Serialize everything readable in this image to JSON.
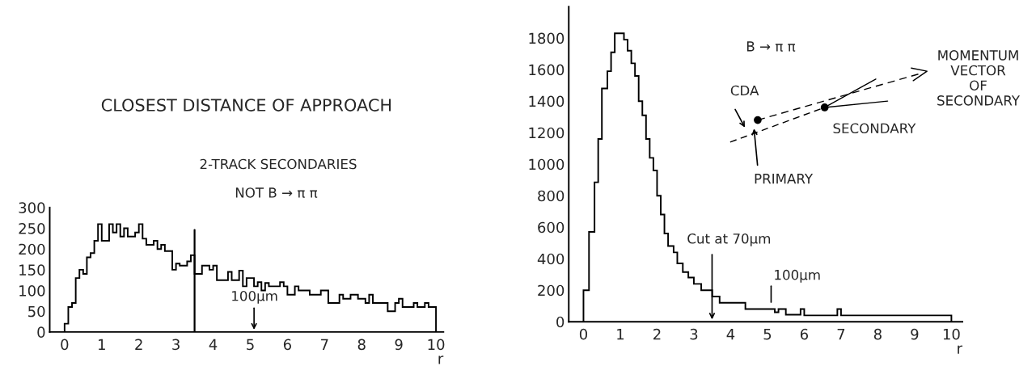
{
  "chart_data": [
    {
      "type": "histogram",
      "title": "CLOSEST DISTANCE OF APPROACH",
      "xlabel": "r",
      "bins": [
        0,
        0.1,
        0.2,
        0.3,
        0.4,
        0.5,
        0.6,
        0.7,
        0.8,
        0.9,
        1.0,
        1.2,
        1.3,
        1.4,
        1.5,
        1.6,
        1.7,
        1.9,
        2.0,
        2.1,
        2.2,
        2.4,
        2.5,
        2.6,
        2.7,
        2.9,
        3.0,
        3.1,
        3.3,
        3.4,
        3.5,
        3.7,
        3.9,
        4.0,
        4.1,
        4.4,
        4.5,
        4.7,
        4.8,
        4.9,
        5.1,
        5.2,
        5.3,
        5.4,
        5.5,
        5.8,
        5.9,
        6.0,
        6.2,
        6.3,
        6.6,
        6.9,
        7.1,
        7.4,
        7.5,
        7.7,
        7.9,
        8.1,
        8.2,
        8.3,
        8.7,
        8.9,
        9.0,
        9.1,
        9.4,
        9.5,
        9.7,
        9.8,
        10.0
      ],
      "values": [
        20,
        60,
        70,
        130,
        150,
        140,
        180,
        190,
        220,
        260,
        220,
        260,
        240,
        260,
        230,
        250,
        230,
        240,
        260,
        225,
        210,
        220,
        200,
        210,
        195,
        150,
        165,
        160,
        170,
        185,
        140,
        160,
        150,
        160,
        125,
        145,
        125,
        148,
        110,
        130,
        110,
        120,
        100,
        118,
        110,
        120,
        110,
        90,
        110,
        100,
        90,
        100,
        70,
        90,
        80,
        90,
        80,
        70,
        90,
        70,
        50,
        70,
        80,
        60,
        70,
        60,
        70,
        60
      ],
      "color": "#000000",
      "xlim": [
        -0.4,
        10.2
      ],
      "ylim": [
        0,
        300
      ],
      "xticks": [
        0,
        1,
        2,
        3,
        4,
        5,
        6,
        7,
        8,
        9,
        10
      ],
      "yticks": [
        0,
        50,
        100,
        150,
        200,
        250,
        300
      ],
      "ref_lines": [
        {
          "axis": "x",
          "value": 3.5
        }
      ],
      "annotations": [
        "2-TRACK SECONDARIES",
        "NOT B → π π",
        "100μm"
      ]
    },
    {
      "type": "histogram",
      "xlabel": "r",
      "bins": [
        0,
        0.15,
        0.3,
        0.4,
        0.5,
        0.65,
        0.75,
        0.85,
        1.1,
        1.2,
        1.3,
        1.4,
        1.5,
        1.6,
        1.7,
        1.8,
        1.9,
        2.0,
        2.1,
        2.2,
        2.3,
        2.45,
        2.55,
        2.7,
        2.85,
        3.0,
        3.2,
        3.5,
        3.7,
        4.4,
        5.2,
        5.3,
        5.5,
        5.9,
        6.0,
        6.9,
        7.0,
        10.0
      ],
      "values": [
        200,
        570,
        885,
        1160,
        1480,
        1590,
        1710,
        1830,
        1790,
        1720,
        1640,
        1560,
        1400,
        1310,
        1160,
        1040,
        960,
        800,
        680,
        560,
        480,
        440,
        370,
        315,
        280,
        240,
        200,
        160,
        120,
        80,
        60,
        80,
        45,
        80,
        40,
        80,
        40
      ],
      "color": "#000000",
      "xlim": [
        -0.4,
        10.3
      ],
      "ylim": [
        0,
        2000
      ],
      "xticks": [
        0,
        1,
        2,
        3,
        4,
        5,
        6,
        7,
        8,
        9,
        10
      ],
      "yticks": [
        0,
        200,
        400,
        600,
        800,
        1000,
        1200,
        1400,
        1600,
        1800
      ],
      "annotations": [
        "B → π π",
        "CDA",
        "PRIMARY",
        "SECONDARY",
        "MOMENTUM\nVECTOR\nOF\nSECONDARY",
        "Cut at 70μm",
        "100μm"
      ]
    }
  ]
}
